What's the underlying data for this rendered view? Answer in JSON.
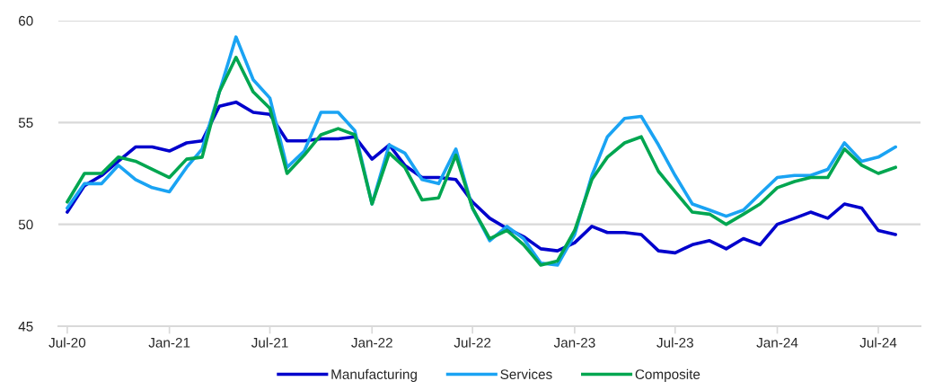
{
  "chart_data": {
    "type": "line",
    "x": [
      "2020-07",
      "2020-08",
      "2020-09",
      "2020-10",
      "2020-11",
      "2020-12",
      "2021-01",
      "2021-02",
      "2021-03",
      "2021-04",
      "2021-05",
      "2021-06",
      "2021-07",
      "2021-08",
      "2021-09",
      "2021-10",
      "2021-11",
      "2021-12",
      "2022-01",
      "2022-02",
      "2022-03",
      "2022-04",
      "2022-05",
      "2022-06",
      "2022-07",
      "2022-08",
      "2022-09",
      "2022-10",
      "2022-11",
      "2022-12",
      "2023-01",
      "2023-02",
      "2023-03",
      "2023-04",
      "2023-05",
      "2023-06",
      "2023-07",
      "2023-08",
      "2023-09",
      "2023-10",
      "2023-11",
      "2023-12",
      "2024-01",
      "2024-02",
      "2024-03",
      "2024-04",
      "2024-05",
      "2024-06",
      "2024-07",
      "2024-08"
    ],
    "series": [
      {
        "name": "Manufacturing",
        "color": "#0000cc",
        "values": [
          50.6,
          51.9,
          52.4,
          53.1,
          53.8,
          53.8,
          53.6,
          54.0,
          54.1,
          55.8,
          56.0,
          55.5,
          55.4,
          54.1,
          54.1,
          54.2,
          54.2,
          54.3,
          53.2,
          53.9,
          52.9,
          52.3,
          52.3,
          52.2,
          51.1,
          50.3,
          49.8,
          49.4,
          48.8,
          48.7,
          49.1,
          49.9,
          49.6,
          49.6,
          49.5,
          48.7,
          48.6,
          49.0,
          49.2,
          48.8,
          49.3,
          49.0,
          50.0,
          50.3,
          50.6,
          50.3,
          51.0,
          50.8,
          49.7,
          49.5
        ]
      },
      {
        "name": "Services",
        "color": "#1aa3f3",
        "values": [
          50.8,
          52.0,
          52.0,
          52.9,
          52.2,
          51.8,
          51.6,
          52.8,
          53.7,
          56.5,
          59.2,
          57.1,
          56.2,
          52.8,
          53.6,
          55.5,
          55.5,
          54.6,
          51.0,
          53.9,
          53.5,
          52.2,
          52.0,
          53.7,
          50.8,
          49.2,
          49.9,
          49.3,
          48.1,
          48.0,
          49.5,
          52.4,
          54.3,
          55.2,
          55.3,
          53.9,
          52.4,
          51.0,
          50.7,
          50.4,
          50.7,
          51.5,
          52.3,
          52.4,
          52.4,
          52.7,
          54.0,
          53.1,
          53.3,
          53.8
        ]
      },
      {
        "name": "Composite",
        "color": "#00a650",
        "values": [
          51.1,
          52.5,
          52.5,
          53.3,
          53.1,
          52.7,
          52.3,
          53.2,
          53.3,
          56.5,
          58.2,
          56.5,
          55.7,
          52.5,
          53.4,
          54.4,
          54.7,
          54.4,
          51.0,
          53.5,
          52.8,
          51.2,
          51.3,
          53.4,
          50.8,
          49.3,
          49.7,
          49.0,
          48.0,
          48.2,
          49.7,
          52.2,
          53.3,
          54.0,
          54.3,
          52.6,
          51.6,
          50.6,
          50.5,
          50.0,
          50.5,
          51.0,
          51.8,
          52.1,
          52.3,
          52.3,
          53.7,
          52.9,
          52.5,
          52.8
        ]
      }
    ],
    "xlim": [
      "2020-06-15",
      "2024-09-15"
    ],
    "xticks": [
      {
        "value": "2020-07",
        "label": "Jul-20"
      },
      {
        "value": "2021-01",
        "label": "Jan-21"
      },
      {
        "value": "2021-07",
        "label": "Jul-21"
      },
      {
        "value": "2022-01",
        "label": "Jan-22"
      },
      {
        "value": "2022-07",
        "label": "Jul-22"
      },
      {
        "value": "2023-01",
        "label": "Jan-23"
      },
      {
        "value": "2023-07",
        "label": "Jul-23"
      },
      {
        "value": "2024-01",
        "label": "Jan-24"
      },
      {
        "value": "2024-07",
        "label": "Jul-24"
      }
    ],
    "ylim": [
      45,
      60
    ],
    "yticks": [
      45,
      50,
      55,
      60
    ],
    "grid": "y",
    "legend": "bottom",
    "line_style": "solid",
    "marker": "none"
  }
}
